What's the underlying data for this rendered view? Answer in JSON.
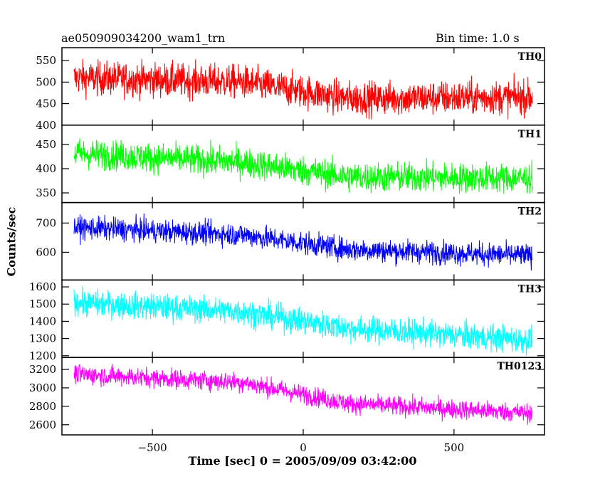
{
  "chart_data": {
    "type": "line",
    "title": "ae050909034200_wam1_trn",
    "bin_time_label": "Bin time: 1.0 s",
    "xlabel": "Time [sec] 0 = 2005/09/09 03:42:00",
    "ylabel": "Counts/sec",
    "xlim": [
      -800,
      800
    ],
    "x_ticks": [
      -500,
      0,
      500
    ],
    "x_range": [
      -760,
      760
    ],
    "bin": 1.0,
    "grid": false,
    "panels": [
      {
        "name": "TH0",
        "color": "#ff0000",
        "ylim": [
          400,
          580
        ],
        "yticks": [
          400,
          450,
          500,
          550
        ],
        "trend": [
          [
            -760,
            510
          ],
          [
            -200,
            500
          ],
          [
            150,
            462
          ],
          [
            760,
            465
          ]
        ],
        "noise": 28
      },
      {
        "name": "TH1",
        "color": "#00ff00",
        "ylim": [
          330,
          490
        ],
        "yticks": [
          350,
          400,
          450
        ],
        "trend": [
          [
            -760,
            432
          ],
          [
            -200,
            413
          ],
          [
            150,
            383
          ],
          [
            760,
            380
          ]
        ],
        "noise": 22
      },
      {
        "name": "TH2",
        "color": "#0000ff",
        "ylim": [
          505,
          770
        ],
        "yticks": [
          600,
          700
        ],
        "trend": [
          [
            -760,
            685
          ],
          [
            -200,
            660
          ],
          [
            150,
            610
          ],
          [
            760,
            588
          ]
        ],
        "noise": 28
      },
      {
        "name": "TH3",
        "color": "#00ffff",
        "ylim": [
          1190,
          1640
        ],
        "yticks": [
          1200,
          1300,
          1400,
          1500,
          1600
        ],
        "trend": [
          [
            -760,
            1510
          ],
          [
            -200,
            1455
          ],
          [
            150,
            1360
          ],
          [
            760,
            1290
          ]
        ],
        "noise": 55
      },
      {
        "name": "TH0123",
        "color": "#ff00ff",
        "ylim": [
          2490,
          3330
        ],
        "yticks": [
          2600,
          2800,
          3000,
          3200
        ],
        "trend": [
          [
            -760,
            3150
          ],
          [
            -200,
            3060
          ],
          [
            150,
            2830
          ],
          [
            760,
            2725
          ]
        ],
        "noise": 75
      }
    ]
  }
}
